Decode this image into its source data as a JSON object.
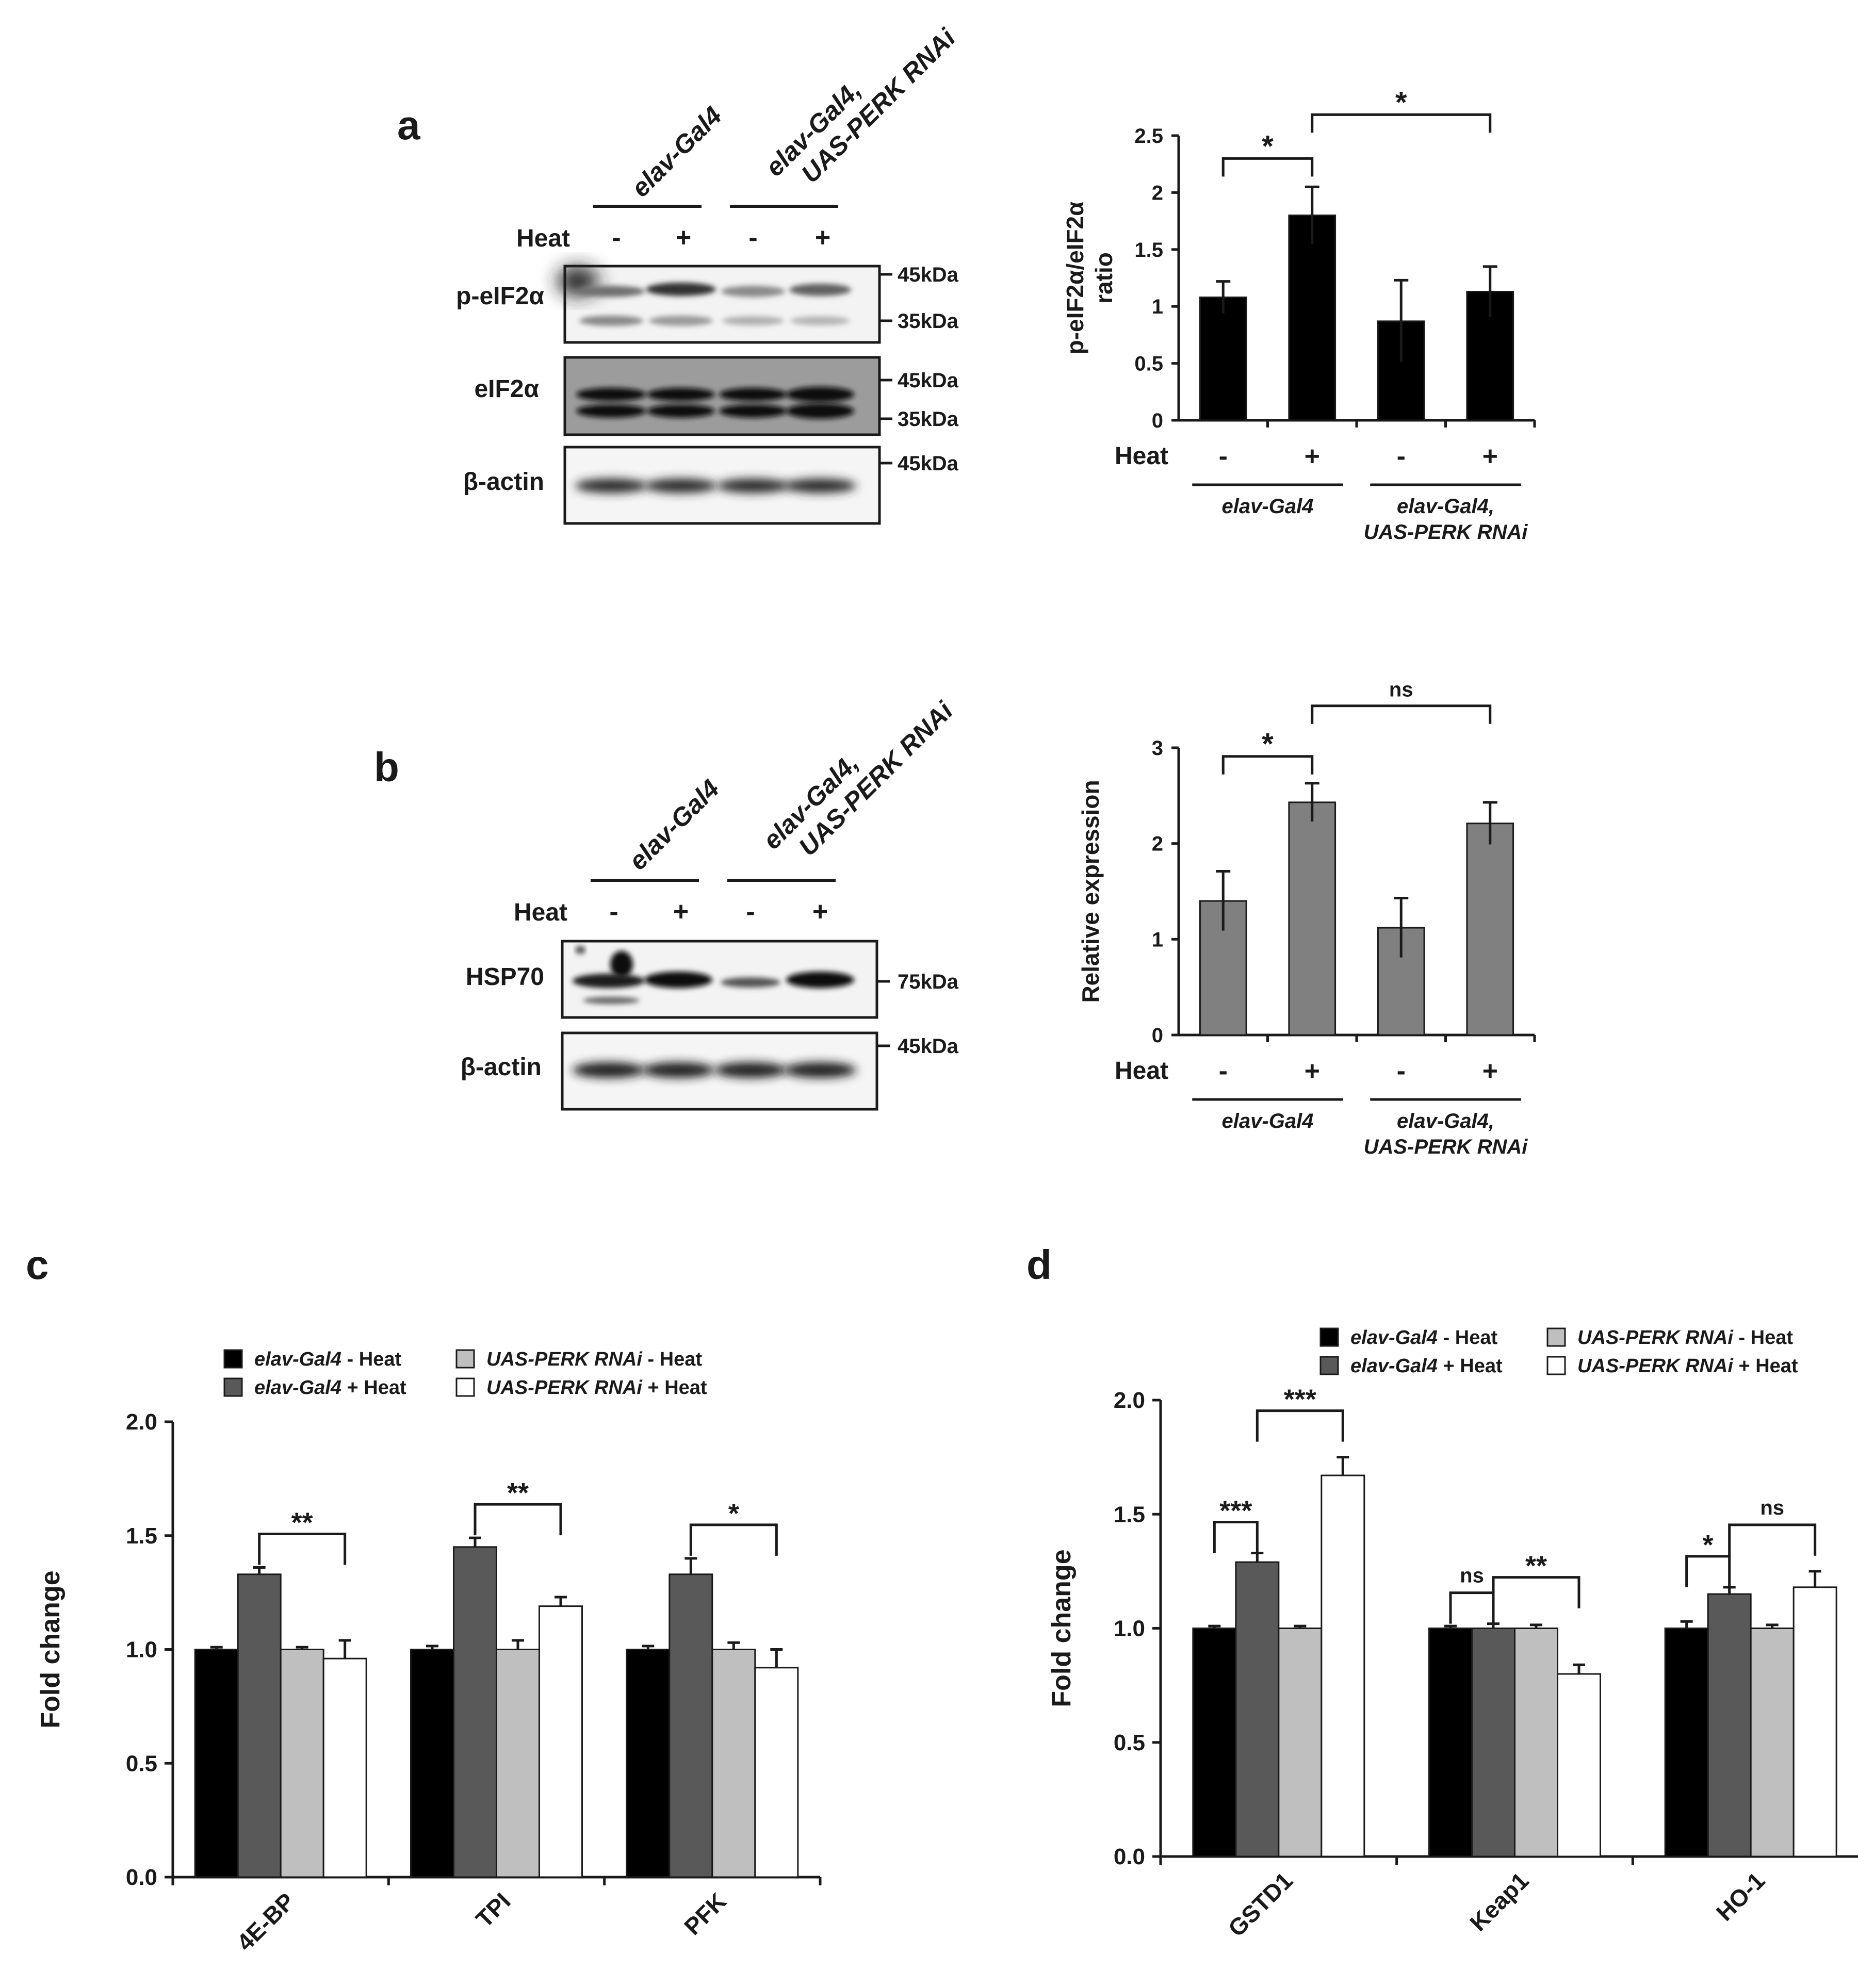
{
  "panels": {
    "a": {
      "letter": "a",
      "blot": {
        "groups": [
          "elav-Gal4",
          "elav-Gal4,\nUAS-PERK RNAi"
        ],
        "heat_label": "Heat",
        "heat_signs": [
          "-",
          "+",
          "-",
          "+"
        ],
        "rows": [
          {
            "label": "p-eIF2α",
            "markers": [
              "45kDa",
              "35kDa"
            ]
          },
          {
            "label": "eIF2α",
            "markers": [
              "45kDa",
              "35kDa"
            ]
          },
          {
            "label": "β-actin",
            "markers": [
              "45kDa"
            ]
          }
        ]
      }
    },
    "b": {
      "letter": "b",
      "blot": {
        "groups": [
          "elav-Gal4",
          "elav-Gal4,\nUAS-PERK RNAi"
        ],
        "heat_label": "Heat",
        "heat_signs": [
          "-",
          "+",
          "-",
          "+"
        ],
        "rows": [
          {
            "label": "HSP70",
            "markers": [
              "75kDa"
            ]
          },
          {
            "label": "β-actin",
            "markers": [
              "45kDa"
            ]
          }
        ]
      }
    },
    "c": {
      "letter": "c"
    },
    "d": {
      "letter": "d"
    }
  },
  "chart_data": [
    {
      "id": "a-chart",
      "type": "bar",
      "ylabel": "p-eIF2α/eIF2α\nratio",
      "ylim": [
        0,
        2.5
      ],
      "yticks": [
        0,
        0.5,
        1,
        1.5,
        2,
        2.5
      ],
      "ytick_labels": [
        "0",
        "0.5",
        "1",
        "1.5",
        "2",
        "2.5"
      ],
      "bar_color": "#000000",
      "values": [
        1.08,
        1.8,
        0.87,
        1.13
      ],
      "errors": [
        0.14,
        0.25,
        0.36,
        0.22
      ],
      "heat_label": "Heat",
      "heat_signs": [
        "-",
        "+",
        "-",
        "+"
      ],
      "groups": [
        "elav-Gal4",
        "elav-Gal4,\nUAS-PERK RNAi"
      ],
      "annotations": [
        {
          "from": 0,
          "to": 1,
          "label": "*"
        },
        {
          "from": 1,
          "to": 3,
          "label": "*"
        }
      ]
    },
    {
      "id": "b-chart",
      "type": "bar",
      "ylabel": "Relative expression",
      "ylim": [
        0,
        3
      ],
      "yticks": [
        0,
        1,
        2,
        3
      ],
      "ytick_labels": [
        "0",
        "1",
        "2",
        "3"
      ],
      "bar_color": "#808080",
      "values": [
        1.4,
        2.43,
        1.12,
        2.21
      ],
      "errors": [
        0.31,
        0.2,
        0.31,
        0.22
      ],
      "heat_label": "Heat",
      "heat_signs": [
        "-",
        "+",
        "-",
        "+"
      ],
      "groups": [
        "elav-Gal4",
        "elav-Gal4,\nUAS-PERK RNAi"
      ],
      "annotations": [
        {
          "from": 0,
          "to": 1,
          "label": "*"
        },
        {
          "from": 1,
          "to": 3,
          "label": "ns"
        }
      ]
    },
    {
      "id": "c-chart",
      "type": "bar",
      "ylabel": "Fold change",
      "ylim": [
        0,
        2
      ],
      "yticks": [
        0,
        0.5,
        1,
        1.5,
        2
      ],
      "ytick_labels": [
        "0.0",
        "0.5",
        "1.0",
        "1.5",
        "2.0"
      ],
      "categories": [
        "4E-BP",
        "TPI",
        "PFK"
      ],
      "legend": [
        {
          "italic": "elav-Gal4",
          "suffix": " - Heat",
          "color": "#000000"
        },
        {
          "italic": "elav-Gal4",
          "suffix": " + Heat",
          "color": "#595959"
        },
        {
          "italic": "UAS-PERK RNAi",
          "suffix": " - Heat",
          "color": "#bfbfbf"
        },
        {
          "italic": "UAS-PERK RNAi",
          "suffix": " + Heat",
          "color": "#ffffff"
        }
      ],
      "series": [
        {
          "name": "elav-Gal4 - Heat",
          "values": [
            1.0,
            1.0,
            1.0
          ],
          "errors": [
            0.01,
            0.015,
            0.015
          ]
        },
        {
          "name": "elav-Gal4 + Heat",
          "values": [
            1.33,
            1.45,
            1.33
          ],
          "errors": [
            0.03,
            0.04,
            0.07
          ]
        },
        {
          "name": "UAS-PERK RNAi - Heat",
          "values": [
            1.0,
            1.0,
            1.0
          ],
          "errors": [
            0.01,
            0.04,
            0.03
          ]
        },
        {
          "name": "UAS-PERK RNAi + Heat",
          "values": [
            0.96,
            1.19,
            0.92
          ],
          "errors": [
            0.08,
            0.04,
            0.08
          ]
        }
      ],
      "annotations": [
        {
          "cat": 0,
          "from": 1,
          "to": 3,
          "label": "**"
        },
        {
          "cat": 1,
          "from": 1,
          "to": 3,
          "label": "**"
        },
        {
          "cat": 2,
          "from": 1,
          "to": 3,
          "label": "*"
        }
      ]
    },
    {
      "id": "d-chart",
      "type": "bar",
      "ylabel": "Fold change",
      "ylim": [
        0,
        2
      ],
      "yticks": [
        0,
        0.5,
        1,
        1.5,
        2
      ],
      "ytick_labels": [
        "0.0",
        "0.5",
        "1.0",
        "1.5",
        "2.0"
      ],
      "categories": [
        "GSTD1",
        "Keap1",
        "HO-1"
      ],
      "legend": [
        {
          "italic": "elav-Gal4",
          "suffix": " - Heat",
          "color": "#000000"
        },
        {
          "italic": "elav-Gal4",
          "suffix": " + Heat",
          "color": "#595959"
        },
        {
          "italic": "UAS-PERK RNAi",
          "suffix": " - Heat",
          "color": "#bfbfbf"
        },
        {
          "italic": "UAS-PERK RNAi",
          "suffix": " + Heat",
          "color": "#ffffff"
        }
      ],
      "series": [
        {
          "name": "elav-Gal4 - Heat",
          "values": [
            1.0,
            1.0,
            1.0
          ],
          "errors": [
            0.01,
            0.01,
            0.03
          ]
        },
        {
          "name": "elav-Gal4 + Heat",
          "values": [
            1.29,
            1.0,
            1.15
          ],
          "errors": [
            0.04,
            0.02,
            0.03
          ]
        },
        {
          "name": "UAS-PERK RNAi - Heat",
          "values": [
            1.0,
            1.0,
            1.0
          ],
          "errors": [
            0.01,
            0.015,
            0.015
          ]
        },
        {
          "name": "UAS-PERK RNAi + Heat",
          "values": [
            1.67,
            0.8,
            1.18
          ],
          "errors": [
            0.08,
            0.04,
            0.07
          ]
        }
      ],
      "annotations": [
        {
          "cat": 0,
          "from": 0,
          "to": 1,
          "label": "***"
        },
        {
          "cat": 0,
          "from": 1,
          "to": 3,
          "label": "***"
        },
        {
          "cat": 1,
          "from": 0,
          "to": 1,
          "label": "ns"
        },
        {
          "cat": 1,
          "from": 1,
          "to": 3,
          "label": "**"
        },
        {
          "cat": 2,
          "from": 0,
          "to": 1,
          "label": "*"
        },
        {
          "cat": 2,
          "from": 1,
          "to": 3,
          "label": "ns"
        }
      ]
    }
  ]
}
